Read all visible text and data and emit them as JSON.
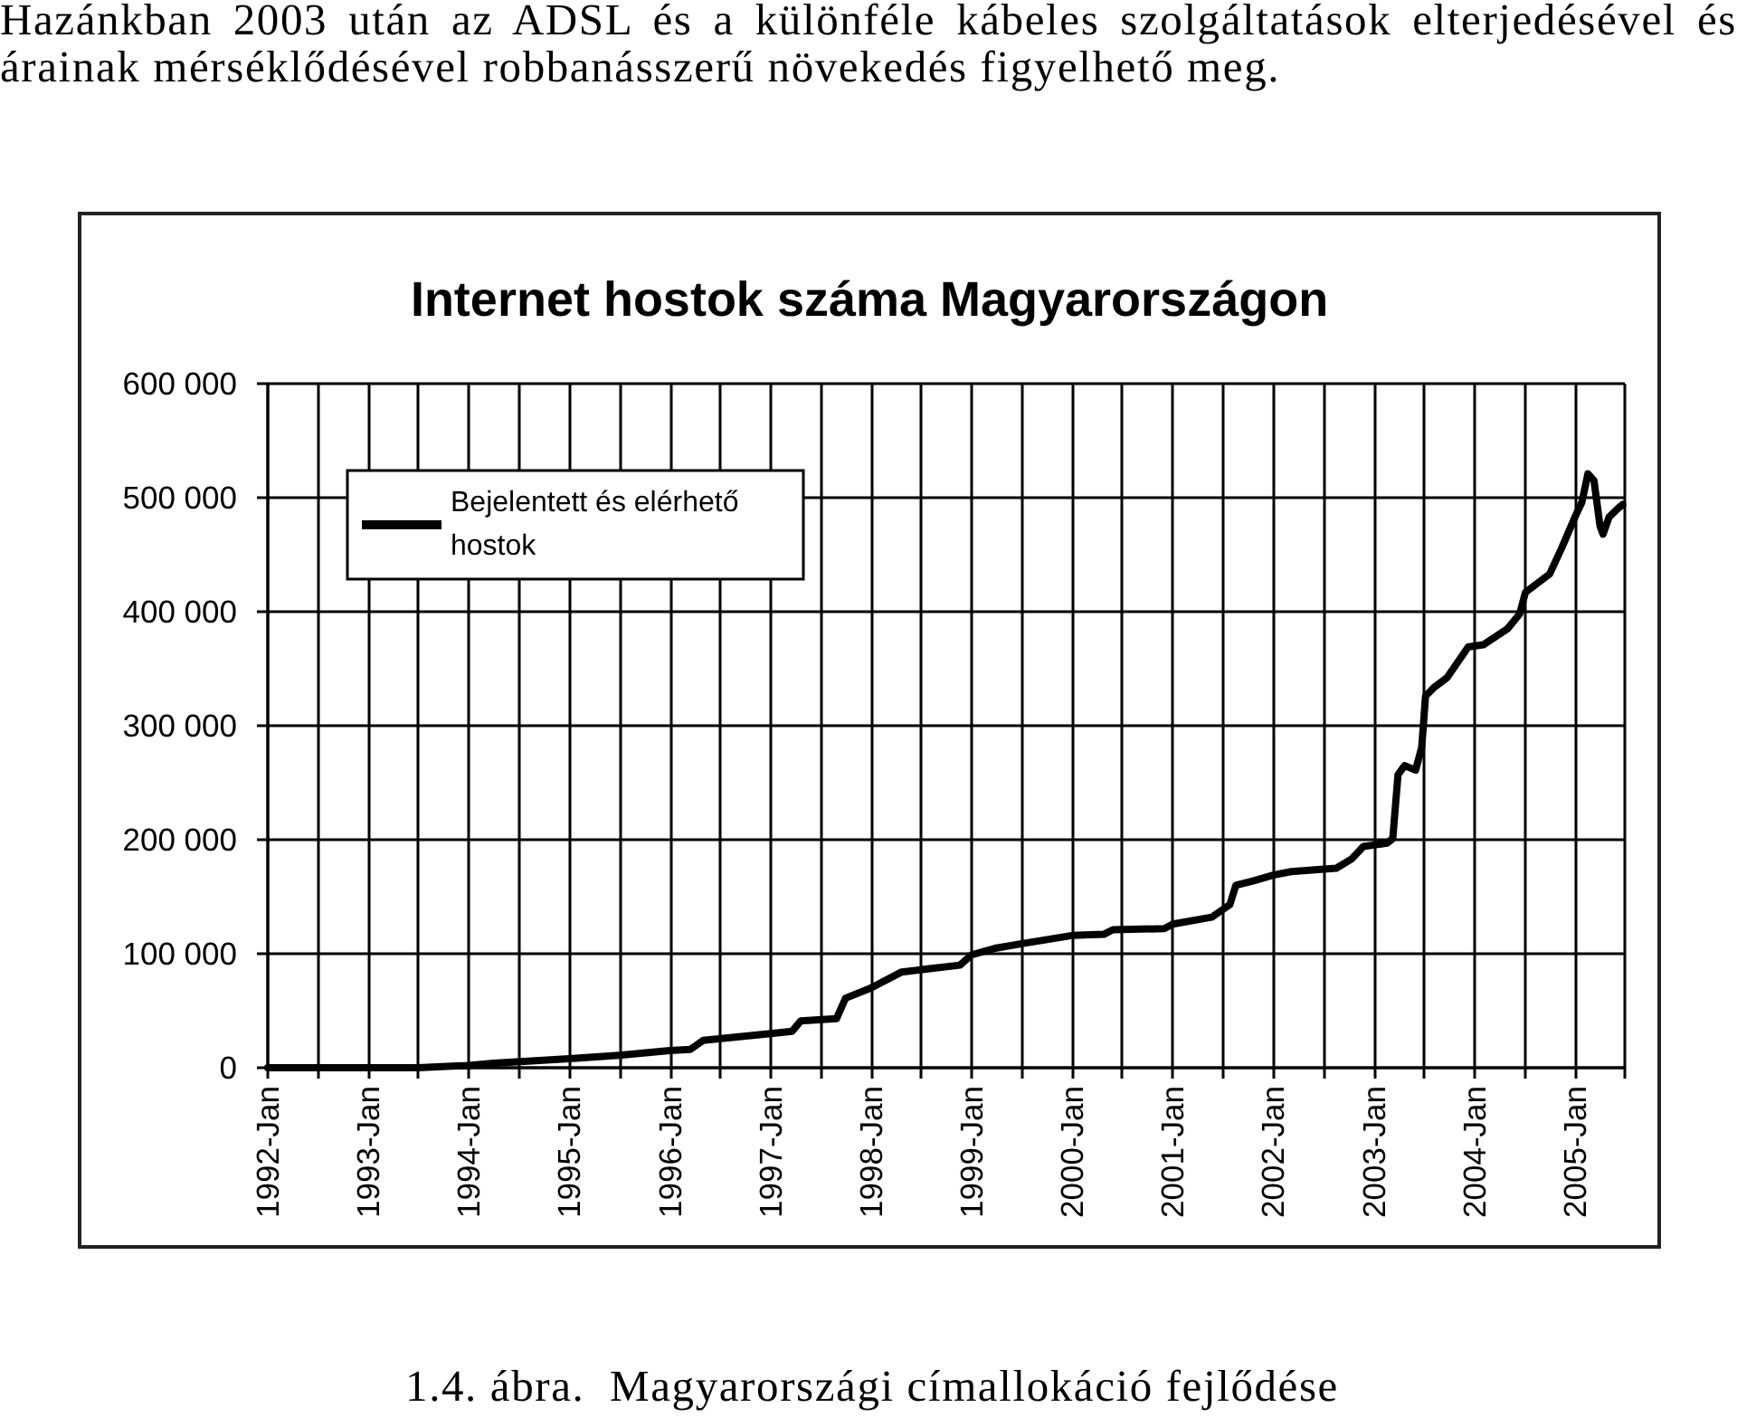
{
  "chart_data": {
    "type": "line",
    "title": "Internet hostok száma Magyarországon",
    "annotations": [
      "Hazánkban 2003 után az ADSL és a különféle kábeles szolgáltatások elterjedésével és árainak mérséklődésével robbanásszerű növekedés figyelhető meg.",
      "1.4. ábra.  Magyarországi címallokáció fejlődése"
    ],
    "x": [
      "1992-01-01",
      "1993-07-01",
      "1994-01-01",
      "1994-04-01",
      "1995-01-01",
      "1995-07-01",
      "1996-01-01",
      "1996-03-15",
      "1996-05-01",
      "1997-01-01",
      "1997-03-20",
      "1997-04-20",
      "1997-08-28",
      "1997-09-30",
      "1998-01-01",
      "1998-04-22",
      "1998-11-20",
      "1999-01-01",
      "1999-04-01",
      "1999-07-08",
      "2000-01-01",
      "2000-04-25",
      "2000-05-28",
      "2000-12-01",
      "2001-01-01",
      "2001-05-22",
      "2001-07-27",
      "2001-08-18",
      "2001-10-22",
      "2002-01-01",
      "2002-03-07",
      "2002-08-18",
      "2002-10-12",
      "2002-11-24",
      "2003-02-18",
      "2003-03-11",
      "2003-03-30",
      "2003-04-23",
      "2003-06-02",
      "2003-06-24",
      "2003-07-01",
      "2003-07-08",
      "2003-08-10",
      "2003-09-24",
      "2003-12-10",
      "2004-02-03",
      "2004-05-01",
      "2004-06-14",
      "2004-07-05",
      "2004-10-01",
      "2004-11-14",
      "2005-01-01",
      "2005-01-26",
      "2005-02-17",
      "2005-03-11",
      "2005-04-02",
      "2005-04-13",
      "2005-05-05",
      "2005-06-08",
      "2005-06-23"
    ],
    "series": [
      {
        "name": "Bejelentett és elérhető hostok",
        "color": "#000000",
        "values": [
          0,
          0,
          2000,
          4000,
          8000,
          11000,
          15000,
          16000,
          24000,
          30000,
          32000,
          41000,
          43000,
          61000,
          70000,
          84000,
          90000,
          99000,
          105000,
          109000,
          116000,
          117000,
          121000,
          122000,
          126000,
          132000,
          143000,
          160000,
          164000,
          169000,
          172000,
          175000,
          183000,
          194000,
          197000,
          201000,
          257000,
          265000,
          261000,
          281000,
          303000,
          326000,
          334000,
          342000,
          369000,
          371000,
          385000,
          398000,
          417000,
          433000,
          456000,
          483000,
          496000,
          521000,
          515000,
          475000,
          468000,
          483000,
          491000,
          494000
        ]
      }
    ],
    "xlim": [
      "1992-01",
      "2005-07"
    ],
    "xticks": [
      {
        "value": "1992-01",
        "label": "1992-Jan"
      },
      {
        "value": "1992-07",
        "label": null
      },
      {
        "value": "1993-01",
        "label": "1993-Jan"
      },
      {
        "value": "1993-07",
        "label": null
      },
      {
        "value": "1994-01",
        "label": "1994-Jan"
      },
      {
        "value": "1994-07",
        "label": null
      },
      {
        "value": "1995-01",
        "label": "1995-Jan"
      },
      {
        "value": "1995-07",
        "label": null
      },
      {
        "value": "1996-01",
        "label": "1996-Jan"
      },
      {
        "value": "1996-07",
        "label": null
      },
      {
        "value": "1997-01",
        "label": "1997-Jan"
      },
      {
        "value": "1997-07",
        "label": null
      },
      {
        "value": "1998-01",
        "label": "1998-Jan"
      },
      {
        "value": "1998-07",
        "label": null
      },
      {
        "value": "1999-01",
        "label": "1999-Jan"
      },
      {
        "value": "1999-07",
        "label": null
      },
      {
        "value": "2000-01",
        "label": "2000-Jan"
      },
      {
        "value": "2000-07",
        "label": null
      },
      {
        "value": "2001-01",
        "label": "2001-Jan"
      },
      {
        "value": "2001-07",
        "label": null
      },
      {
        "value": "2002-01",
        "label": "2002-Jan"
      },
      {
        "value": "2002-07",
        "label": null
      },
      {
        "value": "2003-01",
        "label": "2003-Jan"
      },
      {
        "value": "2003-07",
        "label": null
      },
      {
        "value": "2004-01",
        "label": "2004-Jan"
      },
      {
        "value": "2004-07",
        "label": null
      },
      {
        "value": "2005-01",
        "label": "2005-Jan"
      },
      {
        "value": "2005-07",
        "label": null
      }
    ],
    "ylim": [
      0,
      600000
    ],
    "yticks": [
      0,
      {
        "value": 100000,
        "label": "100 000"
      },
      {
        "value": 200000,
        "label": "200 000"
      },
      {
        "value": 300000,
        "label": "300 000"
      },
      {
        "value": 400000,
        "label": "400 000"
      },
      {
        "value": 500000,
        "label": "500 000"
      },
      {
        "value": 600000,
        "label": "600 000"
      }
    ],
    "grid": true,
    "legend": "top left",
    "line_style": "solid"
  }
}
